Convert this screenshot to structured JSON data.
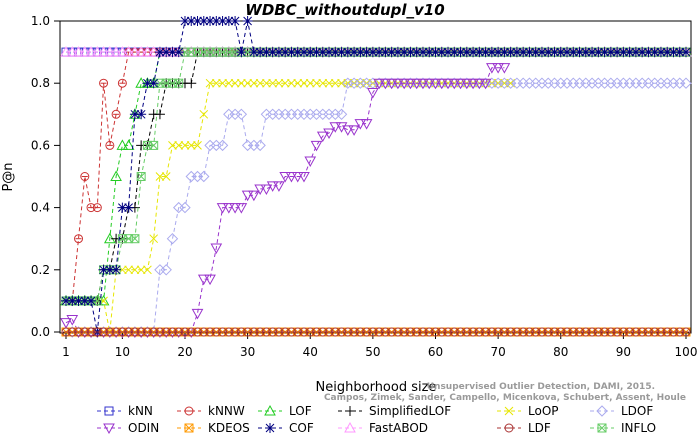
{
  "chart_data": {
    "type": "line",
    "title": "WDBC_withoutdupl_v10",
    "xlabel": "Neighborhood size",
    "ylabel": "P@n",
    "xlim": [
      1,
      100
    ],
    "ylim": [
      0,
      1
    ],
    "x_ticks": [
      1,
      10,
      20,
      30,
      40,
      50,
      60,
      70,
      80,
      90,
      100
    ],
    "y_ticks": [
      0.0,
      0.2,
      0.4,
      0.6,
      0.8,
      1.0
    ],
    "x_tick_labels": [
      "1",
      "10",
      "20",
      "30",
      "40",
      "50",
      "60",
      "70",
      "80",
      "90",
      "100"
    ],
    "y_tick_labels": [
      "0.0",
      "0.2",
      "0.4",
      "0.6",
      "0.8",
      "1.0"
    ],
    "credit": [
      "Campos, Zimek, Sander, Campello, Micenkova, Schubert, Assent, Houle",
      "Unsupervised Outlier Detection, DAMI, 2015."
    ],
    "legend_position": "bottom",
    "series": [
      {
        "name": "kNN",
        "color": "#3333cc",
        "marker": "square",
        "points": [
          [
            1,
            0.9
          ],
          [
            100,
            0.9
          ]
        ]
      },
      {
        "name": "kNNW",
        "color": "#cc3333",
        "marker": "circle-x",
        "points": [
          [
            2,
            0.1
          ],
          [
            3,
            0.3
          ],
          [
            4,
            0.5
          ],
          [
            5,
            0.4
          ],
          [
            6,
            0.4
          ],
          [
            7,
            0.8
          ],
          [
            8,
            0.6
          ],
          [
            9,
            0.7
          ],
          [
            10,
            0.8
          ],
          [
            11,
            0.9
          ],
          [
            100,
            0.9
          ]
        ]
      },
      {
        "name": "LOF",
        "color": "#22cc22",
        "marker": "triangle-up",
        "points": [
          [
            1,
            0.1
          ],
          [
            7,
            0.1
          ],
          [
            8,
            0.3
          ],
          [
            9,
            0.5
          ],
          [
            10,
            0.6
          ],
          [
            11,
            0.6
          ],
          [
            12,
            0.7
          ],
          [
            13,
            0.8
          ],
          [
            15,
            0.8
          ],
          [
            16,
            0.9
          ],
          [
            100,
            0.9
          ]
        ]
      },
      {
        "name": "SimplifiedLOF",
        "color": "#000000",
        "marker": "plus",
        "points": [
          [
            1,
            0.1
          ],
          [
            6,
            0.1
          ],
          [
            7,
            0.2
          ],
          [
            9,
            0.3
          ],
          [
            11,
            0.4
          ],
          [
            13,
            0.6
          ],
          [
            15,
            0.7
          ],
          [
            16,
            0.7
          ],
          [
            17,
            0.8
          ],
          [
            21,
            0.8
          ],
          [
            22,
            0.9
          ],
          [
            100,
            0.9
          ]
        ]
      },
      {
        "name": "LoOP",
        "color": "#e6e600",
        "marker": "x",
        "points": [
          [
            1,
            0.1
          ],
          [
            7,
            0.1
          ],
          [
            8,
            0.0
          ],
          [
            9,
            0.2
          ],
          [
            14,
            0.2
          ],
          [
            15,
            0.3
          ],
          [
            16,
            0.5
          ],
          [
            18,
            0.6
          ],
          [
            22,
            0.6
          ],
          [
            23,
            0.7
          ],
          [
            24,
            0.8
          ],
          [
            71,
            0.8
          ],
          [
            72,
            0.8
          ]
        ]
      },
      {
        "name": "LDOF",
        "color": "#aaaaee",
        "marker": "diamond",
        "points": [
          [
            2,
            0.0
          ],
          [
            15,
            0.0
          ],
          [
            16,
            0.2
          ],
          [
            18,
            0.3
          ],
          [
            19,
            0.4
          ],
          [
            21,
            0.5
          ],
          [
            24,
            0.6
          ],
          [
            27,
            0.7
          ],
          [
            30,
            0.6
          ],
          [
            31,
            0.6
          ],
          [
            33,
            0.7
          ],
          [
            44,
            0.7
          ],
          [
            46,
            0.8
          ],
          [
            100,
            0.8
          ]
        ]
      },
      {
        "name": "ODIN",
        "color": "#9933cc",
        "marker": "triangle-down",
        "points": [
          [
            1,
            0.03
          ],
          [
            2,
            0.04
          ],
          [
            3,
            0.0
          ],
          [
            21,
            0.0
          ],
          [
            22,
            0.06
          ],
          [
            23,
            0.17
          ],
          [
            25,
            0.27
          ],
          [
            26,
            0.4
          ],
          [
            29,
            0.4
          ],
          [
            30,
            0.44
          ],
          [
            32,
            0.46
          ],
          [
            34,
            0.47
          ],
          [
            36,
            0.5
          ],
          [
            38,
            0.5
          ],
          [
            40,
            0.55
          ],
          [
            41,
            0.6
          ],
          [
            42,
            0.63
          ],
          [
            43,
            0.64
          ],
          [
            44,
            0.66
          ],
          [
            46,
            0.65
          ],
          [
            48,
            0.67
          ],
          [
            50,
            0.77
          ],
          [
            51,
            0.8
          ],
          [
            68,
            0.8
          ],
          [
            69,
            0.85
          ],
          [
            71,
            0.85
          ]
        ]
      },
      {
        "name": "KDEOS",
        "color": "#ff9900",
        "marker": "square-x",
        "points": [
          [
            1,
            0.0
          ],
          [
            100,
            0.0
          ]
        ]
      },
      {
        "name": "FastABOD",
        "color": "#ff99ff",
        "marker": "triangle-up",
        "points": [
          [
            1,
            0.9
          ],
          [
            100,
            0.9
          ]
        ]
      },
      {
        "name": "INFLO",
        "color": "#66cc66",
        "marker": "square-x",
        "points": [
          [
            1,
            0.1
          ],
          [
            6,
            0.1
          ],
          [
            7,
            0.2
          ],
          [
            9,
            0.2
          ],
          [
            10,
            0.3
          ],
          [
            13,
            0.5
          ],
          [
            14,
            0.6
          ],
          [
            15,
            0.6
          ],
          [
            16,
            0.8
          ],
          [
            19,
            0.8
          ],
          [
            20,
            0.9
          ],
          [
            100,
            0.9
          ]
        ]
      },
      {
        "name": "COF",
        "color": "#000080",
        "marker": "star",
        "points": [
          [
            1,
            0.1
          ],
          [
            5,
            0.1
          ],
          [
            6,
            0.0
          ],
          [
            7,
            0.2
          ],
          [
            10,
            0.4
          ],
          [
            11,
            0.4
          ],
          [
            12,
            0.7
          ],
          [
            14,
            0.8
          ],
          [
            16,
            0.9
          ],
          [
            19,
            0.9
          ],
          [
            20,
            1.0
          ],
          [
            28,
            1.0
          ],
          [
            29,
            0.9
          ],
          [
            30,
            1.0
          ],
          [
            31,
            0.9
          ],
          [
            100,
            0.9
          ]
        ]
      },
      {
        "name": "LDF",
        "color": "#aa3333",
        "marker": "circle-x",
        "points": [
          [
            1,
            0.0
          ],
          [
            2,
            0.0
          ],
          [
            100,
            0.0
          ]
        ]
      }
    ],
    "legend": [
      [
        "kNN",
        "kNNW",
        "LOF",
        "SimplifiedLOF",
        "LoOP",
        "LDOF"
      ],
      [
        "ODIN",
        "KDEOS",
        "COF",
        "FastABOD",
        "LDF",
        "INFLO"
      ]
    ]
  }
}
